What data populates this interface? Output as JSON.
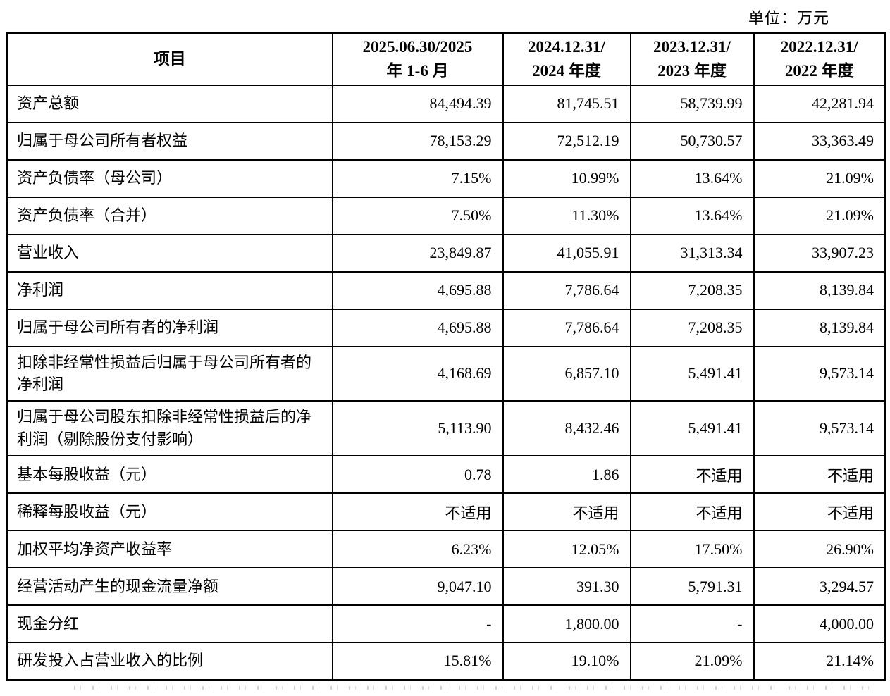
{
  "unit_label": "单位：万元",
  "table": {
    "headers": [
      "项目",
      "2025.06.30/2025\n年 1-6 月",
      "2024.12.31/\n2024 年度",
      "2023.12.31/\n2023 年度",
      "2022.12.31/\n2022 年度"
    ],
    "rows": [
      {
        "label": "资产总额",
        "values": [
          "84,494.39",
          "81,745.51",
          "58,739.99",
          "42,281.94"
        ]
      },
      {
        "label": "归属于母公司所有者权益",
        "values": [
          "78,153.29",
          "72,512.19",
          "50,730.57",
          "33,363.49"
        ]
      },
      {
        "label": "资产负债率（母公司）",
        "values": [
          "7.15%",
          "10.99%",
          "13.64%",
          "21.09%"
        ]
      },
      {
        "label": "资产负债率（合并）",
        "values": [
          "7.50%",
          "11.30%",
          "13.64%",
          "21.09%"
        ]
      },
      {
        "label": "营业收入",
        "values": [
          "23,849.87",
          "41,055.91",
          "31,313.34",
          "33,907.23"
        ]
      },
      {
        "label": "净利润",
        "values": [
          "4,695.88",
          "7,786.64",
          "7,208.35",
          "8,139.84"
        ]
      },
      {
        "label": "归属于母公司所有者的净利润",
        "values": [
          "4,695.88",
          "7,786.64",
          "7,208.35",
          "8,139.84"
        ]
      },
      {
        "label": "扣除非经常性损益后归属于母公司所有者的净利润",
        "values": [
          "4,168.69",
          "6,857.10",
          "5,491.41",
          "9,573.14"
        ]
      },
      {
        "label": "归属于母公司股东扣除非经常性损益后的净利润（剔除股份支付影响）",
        "values": [
          "5,113.90",
          "8,432.46",
          "5,491.41",
          "9,573.14"
        ]
      },
      {
        "label": "基本每股收益（元）",
        "values": [
          "0.78",
          "1.86",
          "不适用",
          "不适用"
        ]
      },
      {
        "label": "稀释每股收益（元）",
        "values": [
          "不适用",
          "不适用",
          "不适用",
          "不适用"
        ]
      },
      {
        "label": "加权平均净资产收益率",
        "values": [
          "6.23%",
          "12.05%",
          "17.50%",
          "26.90%"
        ]
      },
      {
        "label": "经营活动产生的现金流量净额",
        "values": [
          "9,047.10",
          "391.30",
          "5,791.31",
          "3,294.57"
        ]
      },
      {
        "label": "现金分红",
        "values": [
          "-",
          "1,800.00",
          "-",
          "4,000.00"
        ]
      },
      {
        "label": "研发投入占营业收入的比例",
        "values": [
          "15.81%",
          "19.10%",
          "21.09%",
          "21.14%"
        ]
      }
    ]
  }
}
